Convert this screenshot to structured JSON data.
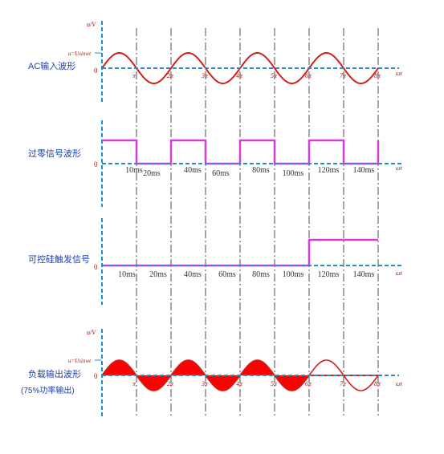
{
  "colors": {
    "axis": "#1f8fd0",
    "label_blue": "#1a3fb0",
    "sine": "#d0201a",
    "square": "#d040d8",
    "red_text": "#b01010",
    "fill": "#ff0000",
    "divider": "#222222"
  },
  "panel1": {
    "label": "AC输入波形",
    "y_axis": "u/V",
    "amplitude_label": "u=Usinwt",
    "origin": "0",
    "x_axis": "ωt",
    "ticks": [
      "π",
      "2π",
      "3π",
      "4π",
      "5π",
      "6π",
      "7π",
      "8π"
    ]
  },
  "panel2": {
    "label": "过零信号波形",
    "origin": "0",
    "x_axis": "ωt",
    "ticks": [
      "10ms",
      "20ms",
      "40ms",
      "60ms",
      "80ms",
      "100ms",
      "120ms",
      "140ms"
    ],
    "levels": [
      1,
      0,
      1,
      0,
      1,
      0,
      1,
      0,
      1
    ]
  },
  "panel3": {
    "label": "可控硅触发信号",
    "origin": "0",
    "x_axis": "ωt",
    "ticks": [
      "10ms",
      "20ms",
      "40ms",
      "60ms",
      "80ms",
      "100ms",
      "120ms",
      "140ms"
    ],
    "trigger_after_half_cycle": 6
  },
  "panel4": {
    "label": "负载输出波形",
    "label2": "(75%功率输出)",
    "y_axis": "u/V",
    "amplitude_label": "u=Usinwt",
    "origin": "0",
    "x_axis": "ωt",
    "ticks": [
      "π",
      "2π",
      "3π",
      "4π",
      "5π",
      "6π",
      "7π",
      "8π"
    ],
    "filled_half_cycles": 6,
    "total_half_cycles": 8
  }
}
